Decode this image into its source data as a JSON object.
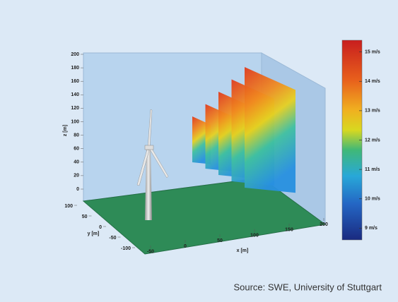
{
  "chart_data": {
    "type": "3d-surface",
    "xlabel": "x [m]",
    "ylabel": "y [m]",
    "zlabel": "z [m]",
    "xlim": [
      -50,
      200
    ],
    "xticks": [
      -50,
      0,
      50,
      100,
      150,
      200
    ],
    "ylim": [
      -100,
      100
    ],
    "yticks": [
      100,
      50,
      0,
      -50,
      -100
    ],
    "zlim": [
      0,
      200
    ],
    "zticks": [
      0,
      20,
      40,
      60,
      80,
      100,
      120,
      140,
      160,
      180,
      200
    ],
    "clim": [
      8.6,
      15.4
    ],
    "cticks": [
      {
        "value": 9,
        "label": "9 m/s"
      },
      {
        "value": 10,
        "label": "10 m/s"
      },
      {
        "value": 11,
        "label": "11 m/s"
      },
      {
        "value": 12,
        "label": "12 m/s"
      },
      {
        "value": 13,
        "label": "13 m/s"
      },
      {
        "value": 14,
        "label": "14 m/s"
      },
      {
        "value": 15,
        "label": "15 m/s"
      }
    ],
    "source": "Source: SWE, University of Stuttgart"
  }
}
